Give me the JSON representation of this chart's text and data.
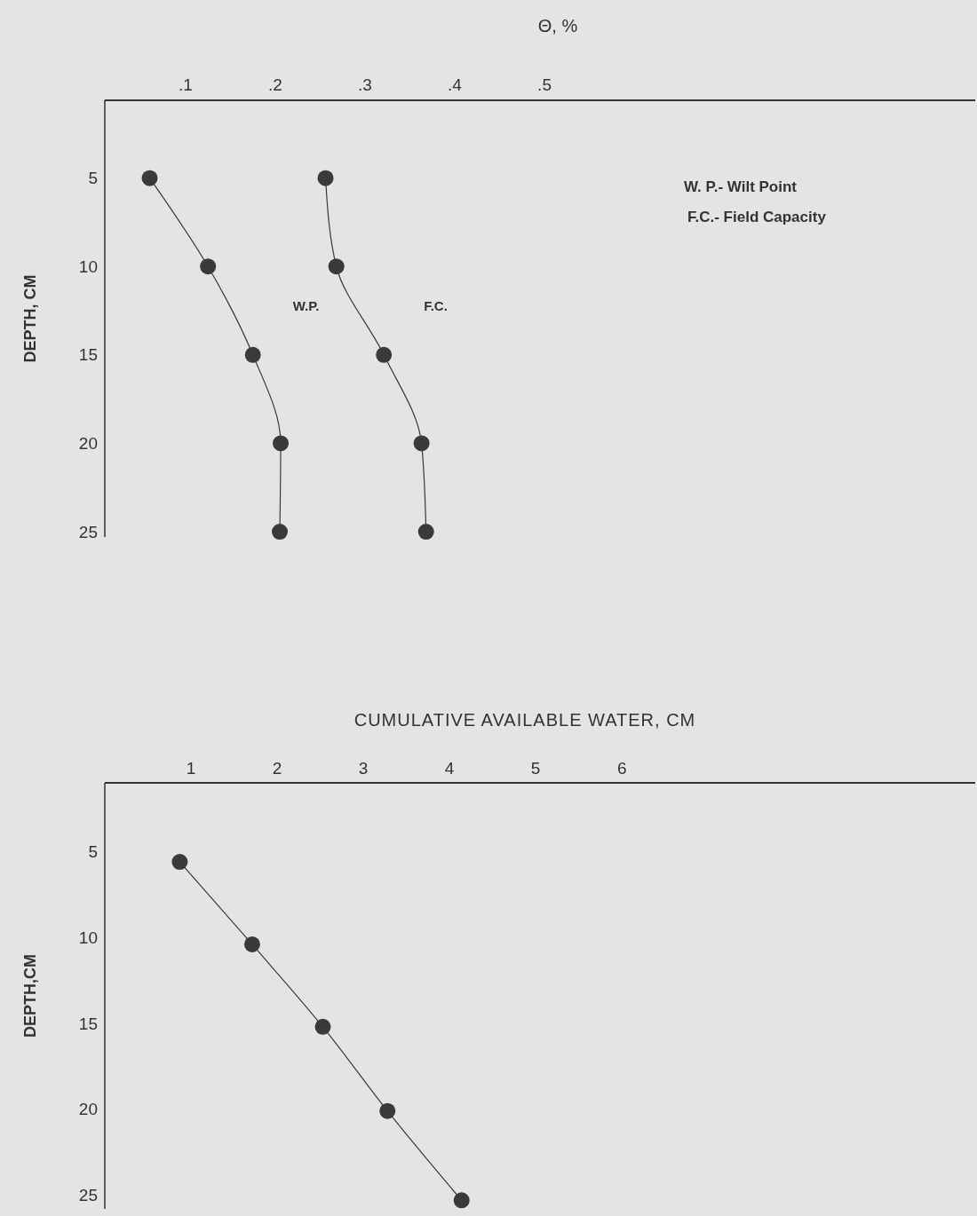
{
  "chart_data": [
    {
      "type": "line",
      "xlabel": "Θ, %",
      "ylabel": "DEPTH, CM",
      "xlim": [
        0.01,
        0.98
      ],
      "xticks": [
        {
          "value": 0.1,
          "label": ".1"
        },
        {
          "value": 0.2,
          "label": ".2"
        },
        {
          "value": 0.3,
          "label": ".3"
        },
        {
          "value": 0.4,
          "label": ".4"
        },
        {
          "value": 0.5,
          "label": ".5"
        }
      ],
      "ylim": [
        25.3,
        0.6
      ],
      "yticks": [
        5,
        10,
        15,
        20,
        25
      ],
      "marker": "circle",
      "line_style": "solid",
      "series": [
        {
          "name": "W.P.",
          "color": "#3a3a3a",
          "x": [
            0.06,
            0.125,
            0.175,
            0.206,
            0.205
          ],
          "values": [
            5,
            10,
            15,
            20,
            25
          ]
        },
        {
          "name": "F.C.",
          "color": "#3a3a3a",
          "x": [
            0.256,
            0.268,
            0.321,
            0.363,
            0.368
          ],
          "values": [
            5,
            10,
            15,
            20,
            25
          ]
        }
      ],
      "annotations": [
        "W. P.- Wilt Point",
        "F.C.- Field Capacity"
      ]
    },
    {
      "type": "line",
      "xlabel": "CUMULATIVE AVAILABLE WATER, CM",
      "ylabel": "DEPTH,CM",
      "xlim": [
        0,
        10.1
      ],
      "xticks": [
        1,
        2,
        3,
        4,
        5,
        6
      ],
      "ylim": [
        25.8,
        1
      ],
      "yticks": [
        5,
        10,
        15,
        20,
        25
      ],
      "marker": "circle",
      "line_style": "solid",
      "series": [
        {
          "color": "#3a3a3a",
          "x": [
            0.87,
            1.71,
            2.53,
            3.28,
            4.14
          ],
          "values": [
            5.6,
            10.4,
            15.2,
            20.1,
            25.3
          ]
        }
      ]
    }
  ]
}
